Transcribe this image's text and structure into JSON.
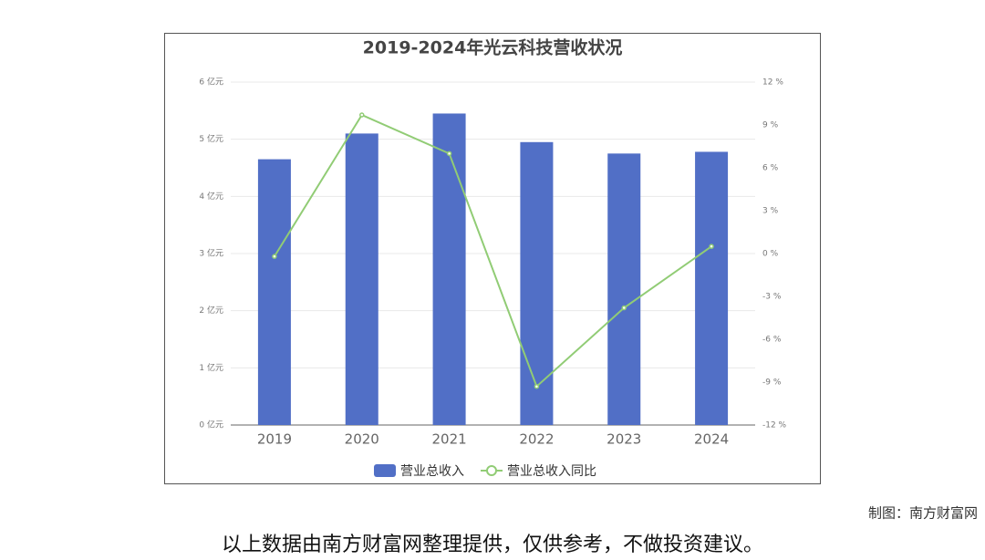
{
  "chart_data": {
    "type": "bar",
    "title": "2019-2024年光云科技营收状况",
    "categories": [
      "2019",
      "2020",
      "2021",
      "2022",
      "2023",
      "2024"
    ],
    "series": [
      {
        "name": "营业总收入",
        "type": "bar",
        "color": "#516fc6",
        "values": [
          4.65,
          5.1,
          5.45,
          4.95,
          4.75,
          4.78
        ]
      },
      {
        "name": "营业总收入同比",
        "type": "line",
        "axis": "y2",
        "color": "#91cc75",
        "values": [
          -0.2,
          9.7,
          7.0,
          -9.3,
          -3.8,
          0.5
        ]
      }
    ],
    "ylim": [
      0,
      6
    ],
    "yticks": [
      {
        "value": 0,
        "label": "0 亿元"
      },
      {
        "value": 1,
        "label": "1 亿元"
      },
      {
        "value": 2,
        "label": "2 亿元"
      },
      {
        "value": 3,
        "label": "3 亿元"
      },
      {
        "value": 4,
        "label": "4 亿元"
      },
      {
        "value": 5,
        "label": "5 亿元"
      },
      {
        "value": 6,
        "label": "6 亿元"
      }
    ],
    "y2lim": [
      -12,
      12
    ],
    "y2ticks": [
      {
        "value": -12,
        "label": "-12 %"
      },
      {
        "value": -9,
        "label": "-9 %"
      },
      {
        "value": -6,
        "label": "-6 %"
      },
      {
        "value": -3,
        "label": "-3 %"
      },
      {
        "value": 0,
        "label": "0 %"
      },
      {
        "value": 3,
        "label": "3 %"
      },
      {
        "value": 6,
        "label": "6 %"
      },
      {
        "value": 9,
        "label": "9 %"
      },
      {
        "value": 12,
        "label": "12 %"
      }
    ],
    "grid": true,
    "legend": "bottom",
    "credit": "制图：南方财富网",
    "disclaimer": "以上数据由南方财富网整理提供，仅供参考，不做投资建议。"
  }
}
